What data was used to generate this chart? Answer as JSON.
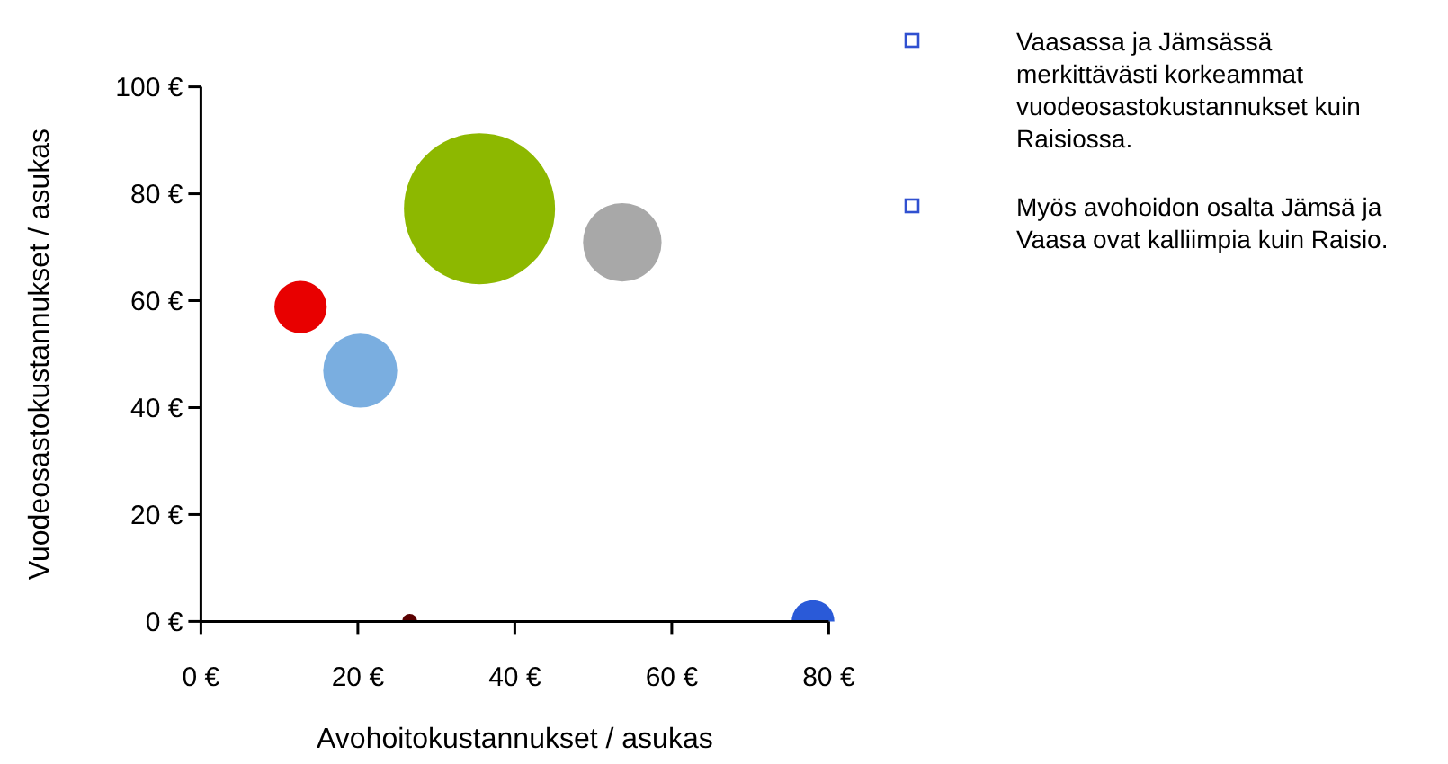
{
  "chart_data": {
    "type": "bubble",
    "xlabel": "Avohoitokustannukset / asukas",
    "ylabel": "Vuodeosastokustannukset / asukas",
    "x": [
      12.7,
      20.3,
      35.5,
      53.7,
      26.6,
      78.0
    ],
    "values": [
      58.8,
      46.9,
      77.2,
      70.9,
      0,
      0
    ],
    "sizes": [
      0.12,
      0.24,
      1,
      0.27,
      0.01,
      0.08
    ],
    "colors": [
      "#e80000",
      "#7aaee0",
      "#8db800",
      "#a8a8a8",
      "#5a0000",
      "#2a5ad8"
    ],
    "xlim": [
      0,
      80
    ],
    "xticks": [
      {
        "value": 0,
        "label": "0 €"
      },
      {
        "value": 20,
        "label": "20 €"
      },
      {
        "value": 40,
        "label": "40 €"
      },
      {
        "value": 60,
        "label": "60 €"
      },
      {
        "value": 80,
        "label": "80 €"
      }
    ],
    "ylim": [
      0,
      100
    ],
    "yticks": [
      {
        "value": 0,
        "label": "0 €"
      },
      {
        "value": 20,
        "label": "20 €"
      },
      {
        "value": 40,
        "label": "40 €"
      },
      {
        "value": 60,
        "label": "60 €"
      },
      {
        "value": 80,
        "label": "80 €"
      },
      {
        "value": 100,
        "label": "100 €"
      }
    ],
    "grid": false,
    "annotations": [
      "Vaasassa ja Jämsässä merkittävästi korkeammat vuodeosastokustannukset kuin Raisiossa.",
      "Myös avohoidon osalta Jämsä ja Vaasa ovat kalliimpia kuin Raisio."
    ]
  }
}
